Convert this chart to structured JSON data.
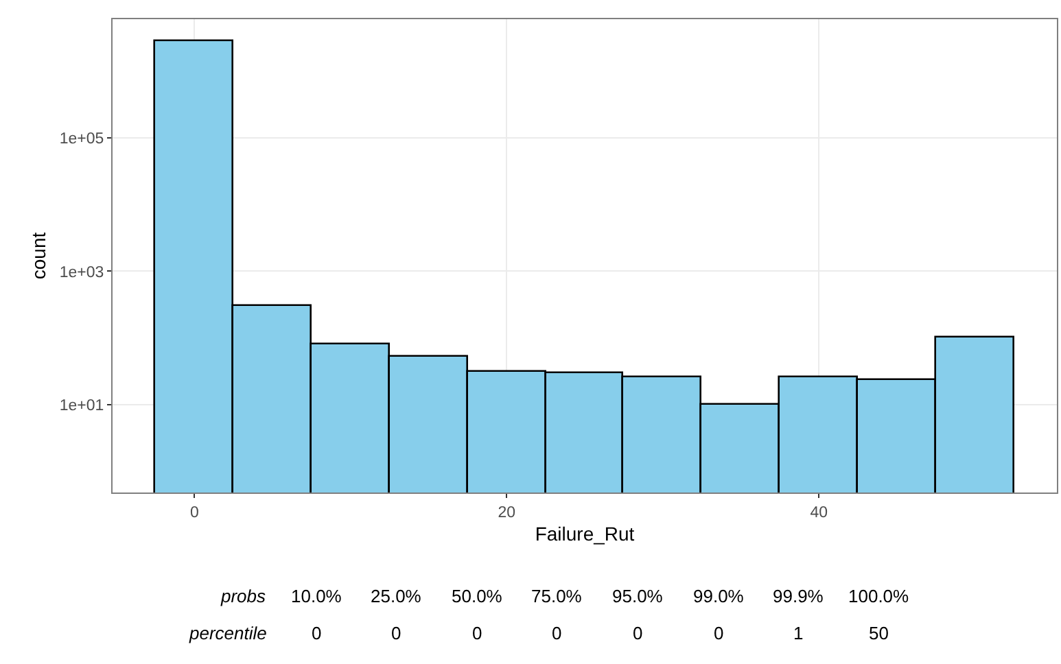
{
  "chart_data": {
    "type": "histogram",
    "xlabel": "Failure_Rut",
    "ylabel": "count",
    "bins": [
      -2.5,
      2.5,
      7.5,
      12.5,
      17.5,
      22.5,
      27.5,
      32.5,
      37.5,
      42.5,
      47.5,
      52.5
    ],
    "values": [
      2800000,
      310,
      79,
      53,
      31,
      30,
      26,
      10,
      26,
      24,
      100
    ],
    "color": "#87ceeb",
    "xlim": [
      -5.25,
      55.25
    ],
    "xticks": [
      0,
      20,
      40
    ],
    "ylim": [
      0.49,
      5900000
    ],
    "yticks": [
      {
        "value": 10,
        "label": "1e+01"
      },
      {
        "value": 1000,
        "label": "1e+03"
      },
      {
        "value": 100000,
        "label": "1e+05"
      }
    ],
    "log": "y",
    "grid": true,
    "annotations": [
      "probs 10.0% 25.0% 50.0% 75.0% 95.0% 99.0% 99.9% 100.0%",
      "percentile 0 0 0 0 0 0 1 50"
    ]
  }
}
